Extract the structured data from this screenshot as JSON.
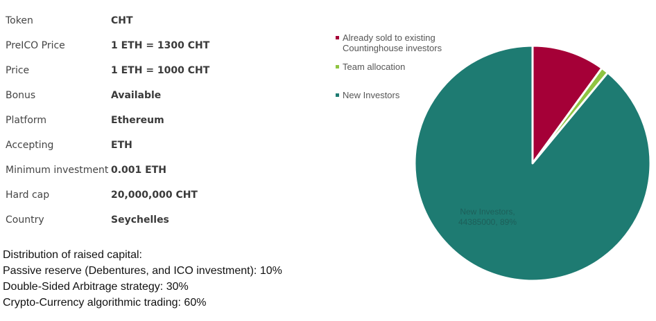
{
  "token_details": [
    {
      "label": "Token",
      "value": "CHT"
    },
    {
      "label": "PreICO Price",
      "value": "1 ETH = 1300 CHT"
    },
    {
      "label": "Price",
      "value": "1 ETH = 1000 CHT"
    },
    {
      "label": "Bonus",
      "value": "Available"
    },
    {
      "label": "Platform",
      "value": "Ethereum"
    },
    {
      "label": "Accepting",
      "value": "ETH"
    },
    {
      "label": "Minimum investment",
      "value": "0.001 ETH"
    },
    {
      "label": "Hard cap",
      "value": "20,000,000 CHT"
    },
    {
      "label": "Country",
      "value": "Seychelles"
    }
  ],
  "distribution": {
    "heading": "Distribution of raised capital:",
    "lines": [
      "Passive reserve (Debentures, and ICO investment): 10%",
      "Double-Sided Arbitrage strategy: 30%",
      "Crypto-Currency algorithmic trading: 60%"
    ]
  },
  "legend": [
    {
      "line1": "Already sold to existing",
      "line2": "Countinghouse investors",
      "color": "#a50037"
    },
    {
      "line1": "Team allocation",
      "line2": "",
      "color": "#8fc442"
    },
    {
      "line1": "New Investors",
      "line2": "",
      "color": "#1e7b72"
    }
  ],
  "chart_data": {
    "type": "pie",
    "categories": [
      "Already sold to existing Countinghouse investors",
      "Team allocation",
      "New Investors"
    ],
    "values": [
      10,
      1,
      89
    ],
    "colors": [
      "#a50037",
      "#8fc442",
      "#1e7b72"
    ],
    "data_labels": {
      "new_investors_line1": "New Investors,",
      "new_investors_line2": "44385000, 89%"
    }
  }
}
